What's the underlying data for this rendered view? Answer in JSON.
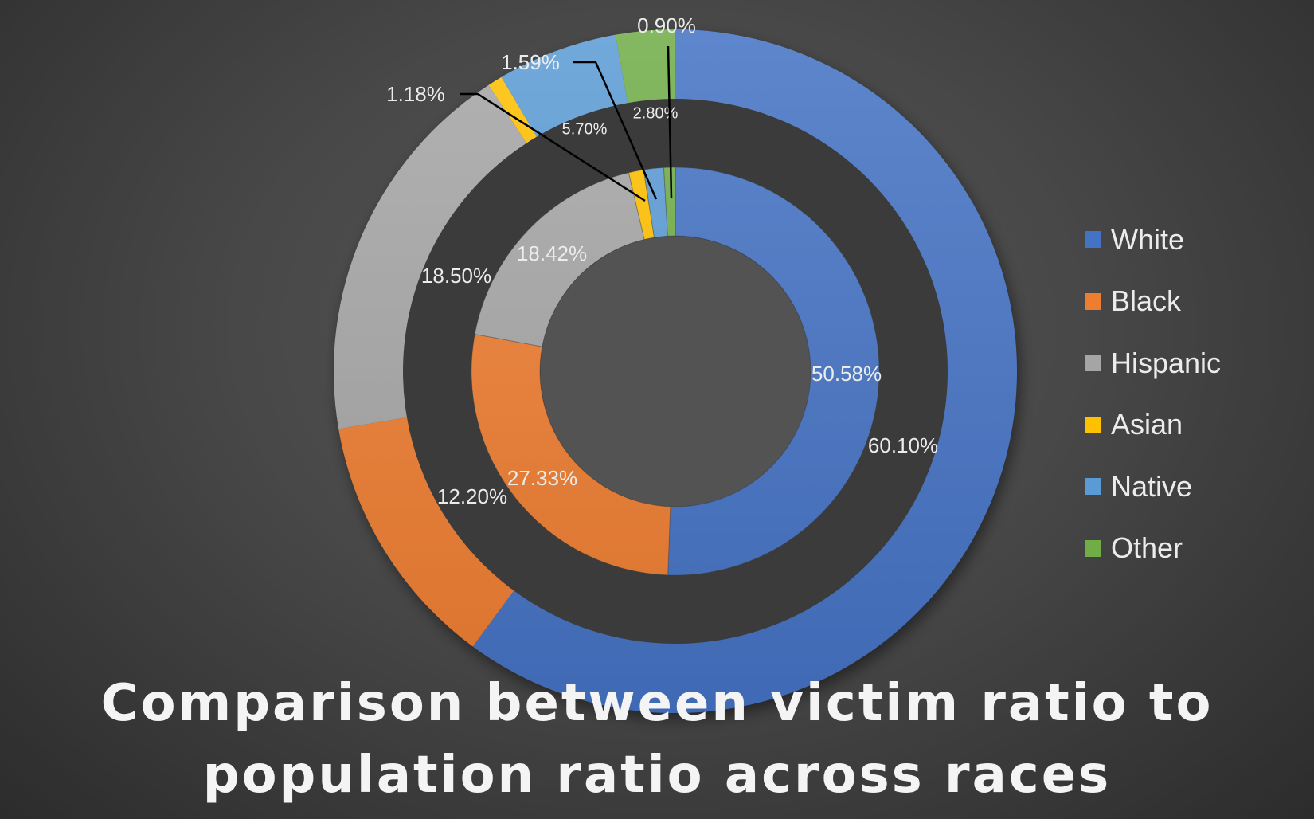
{
  "chart_data": {
    "type": "donut",
    "title": "Comparison between victim ratio to population ratio across races",
    "categories": [
      "White",
      "Black",
      "Hispanic",
      "Asian",
      "Native",
      "Other"
    ],
    "colors": [
      "#4472C4",
      "#ED7D31",
      "#A5A5A5",
      "#FFC000",
      "#5B9BD5",
      "#70AD47"
    ],
    "series": [
      {
        "ring": "outer",
        "values": [
          60.1,
          12.2,
          18.5,
          0.7,
          5.7,
          2.8
        ],
        "labels": [
          "60.10%",
          "12.20%",
          "18.50%",
          "",
          "5.70%",
          "2.80%"
        ]
      },
      {
        "ring": "inner",
        "values": [
          50.58,
          27.33,
          18.42,
          1.18,
          1.59,
          0.9
        ],
        "labels": [
          "50.58%",
          "27.33%",
          "18.42%",
          "1.18%",
          "1.59%",
          "0.90%"
        ]
      }
    ],
    "legend_position": "right"
  }
}
